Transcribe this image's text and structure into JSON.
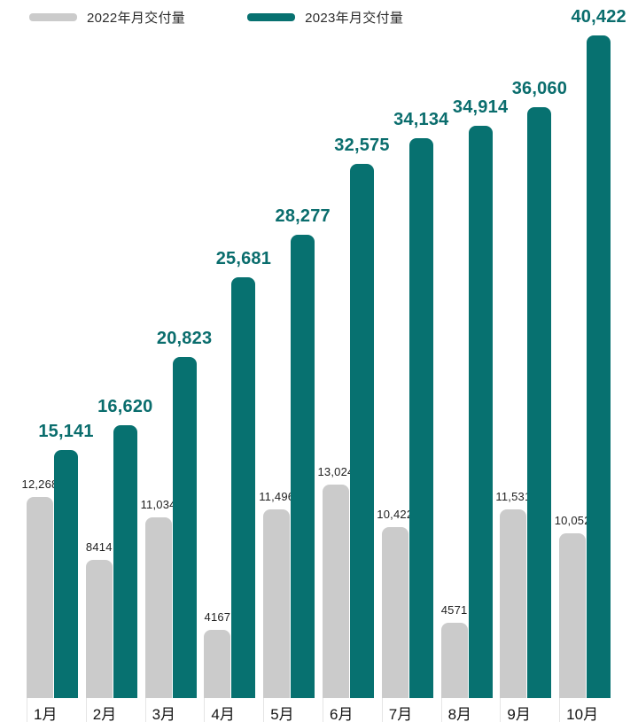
{
  "chart_data": {
    "type": "bar",
    "title": "",
    "categories": [
      "1月",
      "2月",
      "3月",
      "4月",
      "5月",
      "6月",
      "7月",
      "8月",
      "9月",
      "10月"
    ],
    "series": [
      {
        "name": "2022年月交付量",
        "color": "#cbcbcb",
        "label_color": "#1f1f1f",
        "values": [
          12268,
          8414,
          11034,
          4167,
          11496,
          13024,
          10422,
          4571,
          11531,
          10052
        ],
        "labels": [
          "12,268",
          "8414",
          "11,034",
          "4167",
          "11,496",
          "13,024",
          "10,422",
          "4571",
          "11,531",
          "10,052"
        ]
      },
      {
        "name": "2023年月交付量",
        "color": "#077170",
        "label_color": "#0a6d6d",
        "values": [
          15141,
          16620,
          20823,
          25681,
          28277,
          32575,
          34134,
          34914,
          36060,
          40422
        ],
        "labels": [
          "15,141",
          "16,620",
          "20,823",
          "25,681",
          "28,277",
          "32,575",
          "34,134",
          "34,914",
          "36,060",
          "40,422"
        ]
      }
    ],
    "ylim": [
      0,
      40422
    ],
    "legend_position": "top",
    "grid": false,
    "xlabel": "",
    "ylabel": ""
  }
}
